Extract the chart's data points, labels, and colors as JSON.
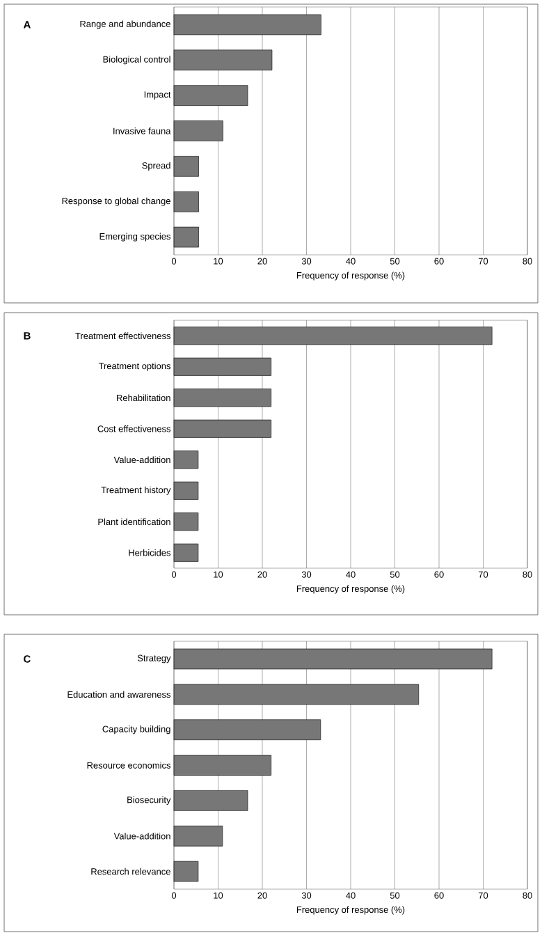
{
  "chart_data": [
    {
      "type": "bar",
      "orientation": "horizontal",
      "title": "A",
      "categories": [
        "Range and abundance",
        "Biological control",
        "Impact",
        "Invasive fauna",
        "Spread",
        "Response to global change",
        "Emerging species"
      ],
      "values": [
        33.3,
        22.2,
        16.7,
        11.1,
        5.6,
        5.6,
        5.6
      ],
      "color": "#777777",
      "xlabel": "Frequency of response (%)",
      "xlim": [
        0,
        80
      ],
      "xticks": [
        0,
        10,
        20,
        30,
        40,
        50,
        60,
        70,
        80
      ],
      "grid": "x"
    },
    {
      "type": "bar",
      "orientation": "horizontal",
      "title": "B",
      "categories": [
        "Treatment effectiveness",
        "Treatment options",
        "Rehabilitation",
        "Cost effectiveness",
        "Value-addition",
        "Treatment history",
        "Plant identification",
        "Herbicides"
      ],
      "values": [
        72,
        22,
        22,
        22,
        5.5,
        5.5,
        5.5,
        5.5
      ],
      "color": "#777777",
      "xlabel": "Frequency of response (%)",
      "xlim": [
        0,
        80
      ],
      "xticks": [
        0,
        10,
        20,
        30,
        40,
        50,
        60,
        70,
        80
      ],
      "grid": "x"
    },
    {
      "type": "bar",
      "orientation": "horizontal",
      "title": "C",
      "categories": [
        "Strategy",
        "Education and awareness",
        "Capacity building",
        "Resource economics",
        "Biosecurity",
        "Value-addition",
        "Research relevance"
      ],
      "values": [
        72,
        55.4,
        33.2,
        22,
        16.7,
        11,
        5.5
      ],
      "color": "#777777",
      "xlabel": "Frequency of response (%)",
      "xlim": [
        0,
        80
      ],
      "xticks": [
        0,
        10,
        20,
        30,
        40,
        50,
        60,
        70,
        80
      ],
      "grid": "x"
    }
  ]
}
